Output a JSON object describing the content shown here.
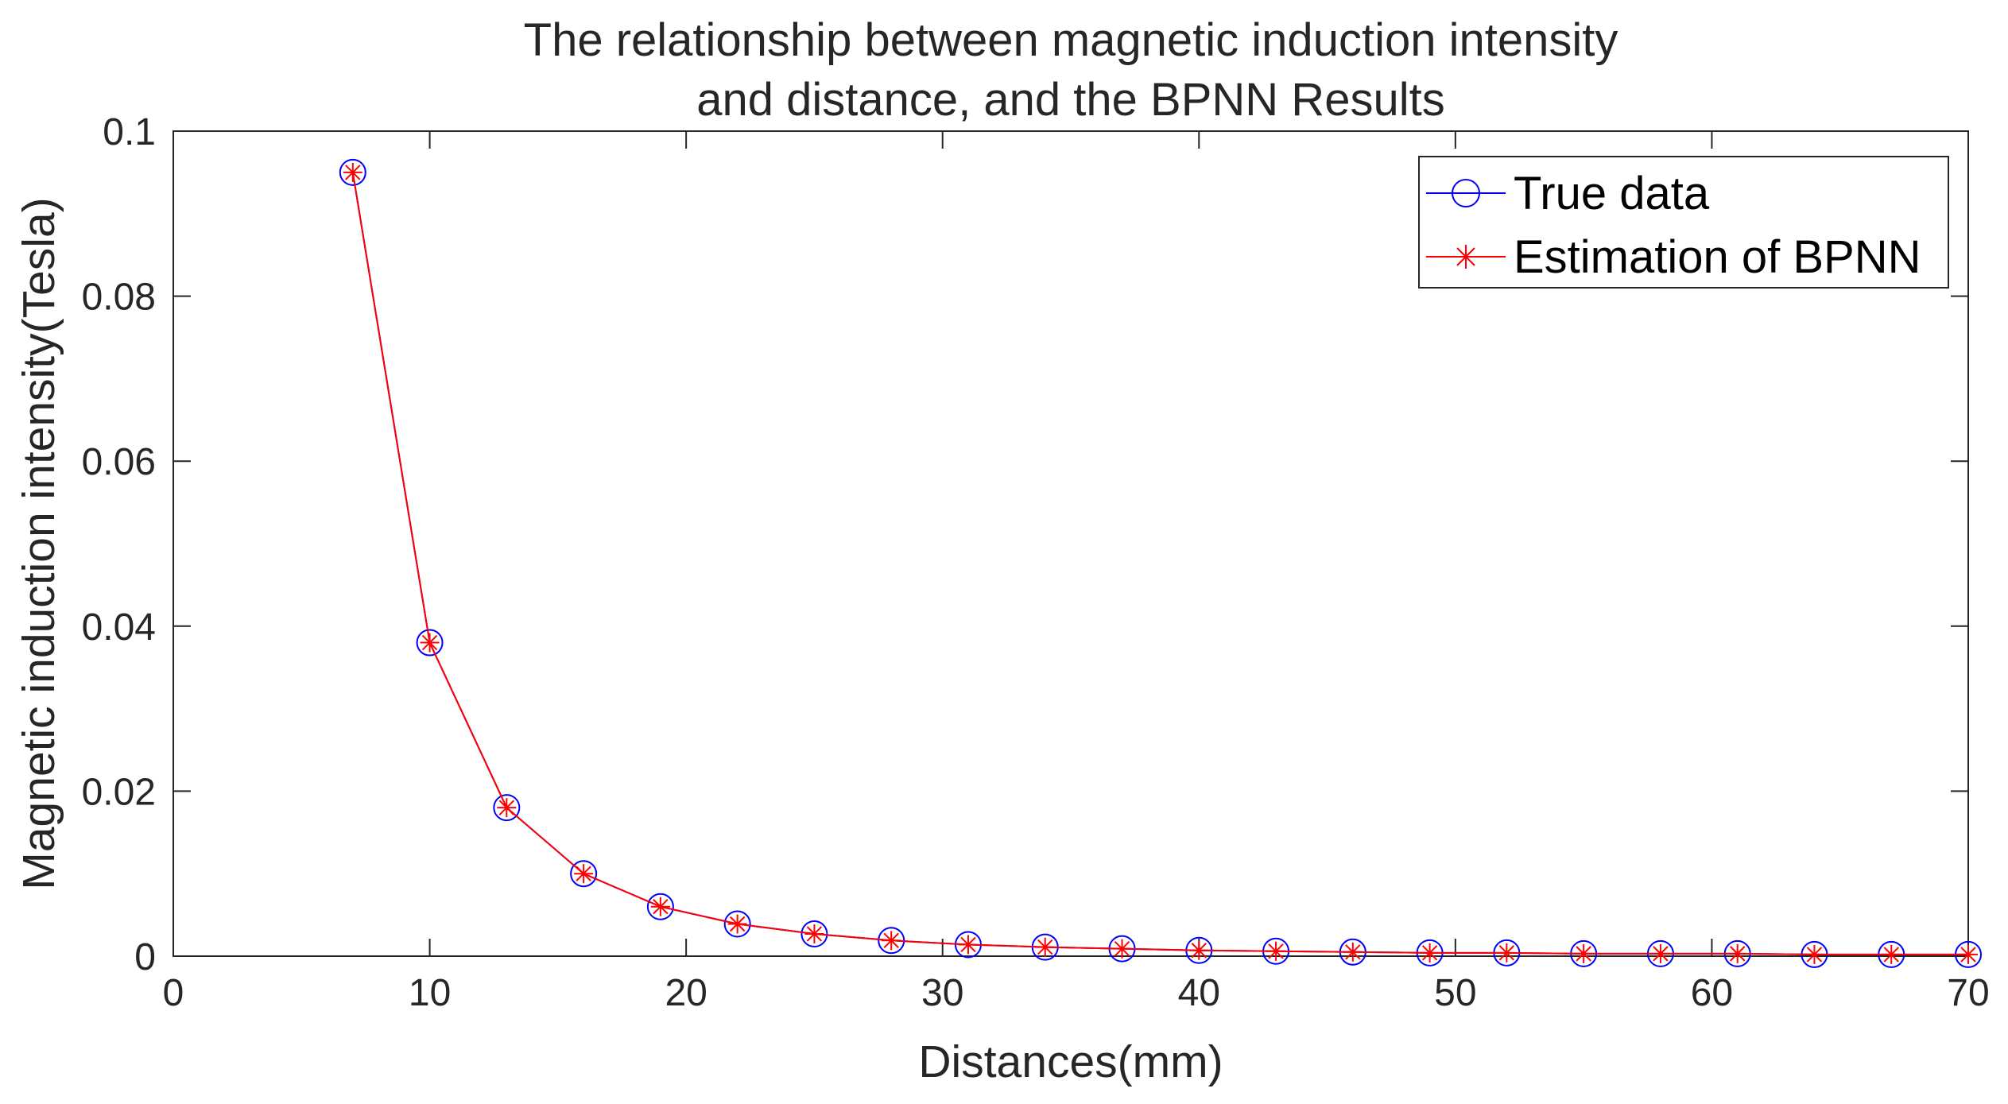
{
  "chart_data": {
    "type": "line",
    "title": [
      "The relationship between magnetic induction intensity",
      "and distance, and the BPNN Results"
    ],
    "xlabel": "Distances(mm)",
    "ylabel": "Magnetic induction intensity(Tesla)",
    "xlim": [
      0,
      70
    ],
    "ylim": [
      0,
      0.1
    ],
    "xticks": [
      0,
      10,
      20,
      30,
      40,
      50,
      60,
      70
    ],
    "xtick_labels": [
      "0",
      "10",
      "20",
      "30",
      "40",
      "50",
      "60",
      "70"
    ],
    "yticks": [
      0,
      0.02,
      0.04,
      0.06,
      0.08,
      0.1
    ],
    "ytick_labels": [
      "0",
      "0.02",
      "0.04",
      "0.06",
      "0.08",
      "0.1"
    ],
    "grid": false,
    "legend_position": "top-right",
    "x": [
      7,
      10,
      13,
      16,
      19,
      22,
      25,
      28,
      31,
      34,
      37,
      40,
      43,
      46,
      49,
      52,
      55,
      58,
      61,
      64,
      67,
      70
    ],
    "series": [
      {
        "name": "True data",
        "marker": "circle",
        "color": "#0000ff",
        "values": [
          0.095,
          0.038,
          0.018,
          0.01,
          0.006,
          0.0039,
          0.0027,
          0.0019,
          0.0014,
          0.0011,
          0.0009,
          0.0007,
          0.0006,
          0.0005,
          0.0004,
          0.0004,
          0.0003,
          0.0003,
          0.0003,
          0.0002,
          0.0002,
          0.0002
        ]
      },
      {
        "name": "Estimation of BPNN",
        "marker": "asterisk",
        "color": "#ff0000",
        "values": [
          0.095,
          0.038,
          0.018,
          0.01,
          0.006,
          0.0039,
          0.0027,
          0.0019,
          0.0014,
          0.0011,
          0.0009,
          0.0007,
          0.0006,
          0.0005,
          0.0004,
          0.0004,
          0.0003,
          0.0003,
          0.0003,
          0.0002,
          0.0002,
          0.0002
        ]
      }
    ]
  }
}
